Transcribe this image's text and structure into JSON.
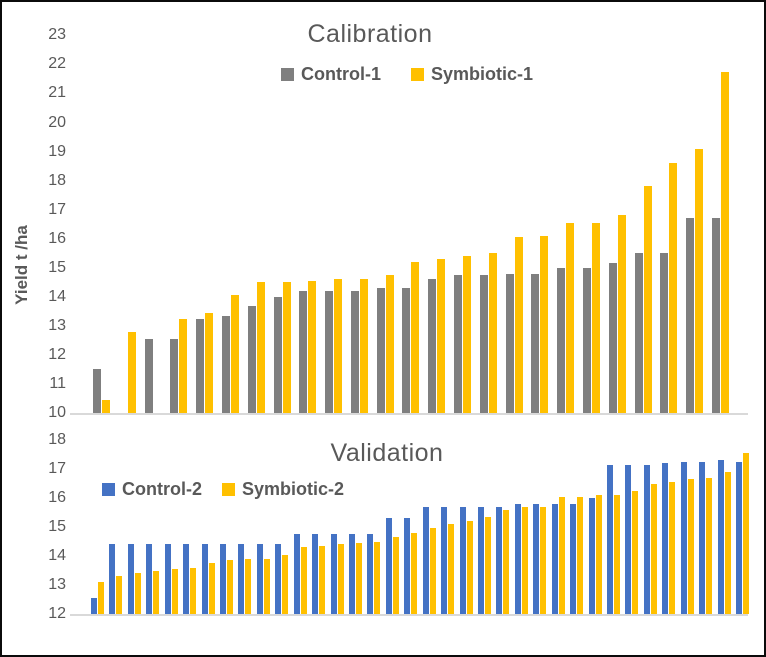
{
  "figure": {
    "background": "#FFFFFF",
    "border_color": "#0B0B0B"
  },
  "colors": {
    "control1_gray": "#7F7F7F",
    "symbiotic_yellow": "#FFC000",
    "control2_blue": "#4472C4",
    "axis_line": "#D9D9D9",
    "text": "#595959"
  },
  "chart_data": [
    {
      "type": "bar",
      "title": "Calibration",
      "ylabel": "Yield t /ha",
      "ylim": [
        10,
        23
      ],
      "yticks": [
        10,
        11,
        12,
        13,
        14,
        15,
        16,
        17,
        18,
        19,
        20,
        21,
        22,
        23
      ],
      "grid": false,
      "x_axis_labels": "none",
      "legend_position": "top-center",
      "series": [
        {
          "name": "Control-1",
          "color": "#7F7F7F",
          "values": [
            11.5,
            null,
            12.55,
            12.55,
            13.25,
            13.35,
            13.7,
            14.0,
            14.2,
            14.2,
            14.2,
            14.3,
            14.3,
            14.6,
            14.75,
            14.75,
            14.8,
            14.8,
            15.0,
            15.0,
            15.15,
            15.5,
            15.5,
            16.7,
            16.7
          ]
        },
        {
          "name": "Symbiotic-1",
          "color": "#FFC000",
          "values": [
            10.45,
            12.8,
            null,
            13.25,
            13.45,
            14.05,
            14.5,
            14.5,
            14.55,
            14.6,
            14.6,
            14.75,
            15.2,
            15.3,
            15.4,
            15.5,
            16.05,
            16.1,
            16.55,
            16.55,
            16.8,
            17.8,
            18.6,
            19.1,
            21.75
          ]
        }
      ]
    },
    {
      "type": "bar",
      "title": "Validation",
      "ylabel": "",
      "ylim": [
        12,
        18
      ],
      "yticks": [
        12,
        13,
        14,
        15,
        16,
        17,
        18
      ],
      "grid": false,
      "x_axis_labels": "none",
      "legend_position": "top-left",
      "series": [
        {
          "name": "Control-2",
          "color": "#4472C4",
          "values": [
            12.55,
            14.4,
            14.4,
            14.4,
            14.4,
            14.4,
            14.4,
            14.4,
            14.4,
            14.4,
            14.4,
            14.75,
            14.75,
            14.75,
            14.75,
            14.75,
            15.3,
            15.3,
            15.7,
            15.7,
            15.7,
            15.7,
            15.7,
            15.8,
            15.8,
            15.8,
            15.8,
            16.0,
            17.15,
            17.15,
            17.15,
            17.2,
            17.25,
            17.25,
            17.3,
            17.25
          ]
        },
        {
          "name": "Symbiotic-2",
          "color": "#FFC000",
          "values": [
            13.1,
            13.3,
            13.4,
            13.5,
            13.55,
            13.6,
            13.75,
            13.85,
            13.9,
            13.9,
            14.05,
            14.3,
            14.35,
            14.4,
            14.45,
            14.5,
            14.65,
            14.8,
            14.95,
            15.1,
            15.2,
            15.35,
            15.6,
            15.7,
            15.7,
            16.05,
            16.05,
            16.1,
            16.1,
            16.25,
            16.5,
            16.55,
            16.65,
            16.7,
            16.9,
            17.55
          ]
        }
      ]
    }
  ]
}
